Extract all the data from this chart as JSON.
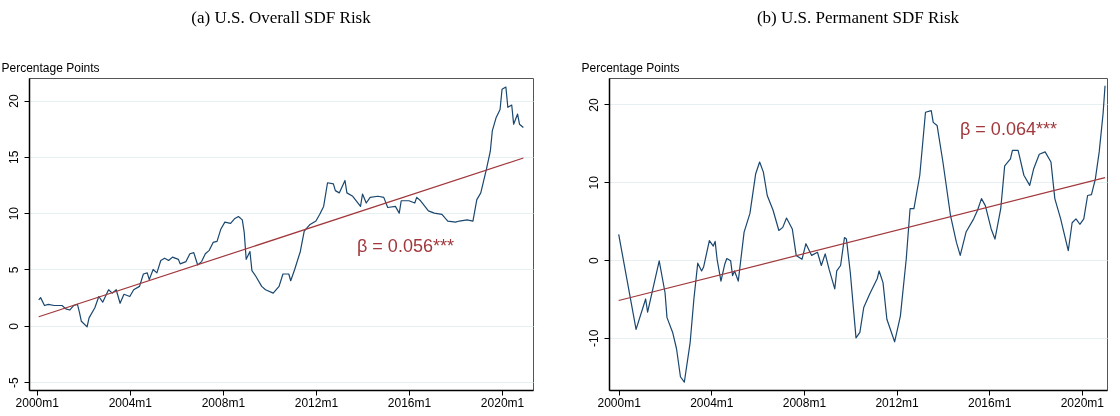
{
  "chart_data": [
    {
      "type": "line",
      "title": "(a) U.S. Overall SDF Risk",
      "ylabel": "Percentage Points",
      "xlim": [
        "1999-09",
        "2021-05"
      ],
      "ylim": [
        -5.7,
        22
      ],
      "xticks": [
        {
          "value": "2000-01",
          "label": "2000m1"
        },
        {
          "value": "2004-01",
          "label": "2004m1"
        },
        {
          "value": "2008-01",
          "label": "2008m1"
        },
        {
          "value": "2012-01",
          "label": "2012m1"
        },
        {
          "value": "2016-01",
          "label": "2016m1"
        },
        {
          "value": "2020-01",
          "label": "2020m1"
        }
      ],
      "yticks": [
        -5,
        0,
        5,
        10,
        15,
        20
      ],
      "grid": "y",
      "series": [
        {
          "color": "#1a476f",
          "x": [
            "2000-02",
            "2000-03",
            "2000-05",
            "2000-07",
            "2000-10",
            "2001-02",
            "2001-04",
            "2001-06",
            "2001-08",
            "2001-10",
            "2001-11",
            "2001-12",
            "2002-03",
            "2002-04",
            "2002-07",
            "2002-09",
            "2002-11",
            "2003-02",
            "2003-04",
            "2003-06",
            "2003-08",
            "2003-10",
            "2004-01",
            "2004-03",
            "2004-06",
            "2004-08",
            "2004-10",
            "2004-11",
            "2005-01",
            "2005-03",
            "2005-05",
            "2005-07",
            "2005-09",
            "2005-11",
            "2006-02",
            "2006-03",
            "2006-06",
            "2006-08",
            "2006-10",
            "2006-12",
            "2007-02",
            "2007-04",
            "2007-06",
            "2007-08",
            "2007-10",
            "2007-12",
            "2008-02",
            "2008-05",
            "2008-07",
            "2008-09",
            "2008-11",
            "2008-12",
            "2009-01",
            "2009-03",
            "2009-04",
            "2009-06",
            "2009-09",
            "2009-11",
            "2010-03",
            "2010-06",
            "2010-08",
            "2010-11",
            "2010-12",
            "2011-02",
            "2011-05",
            "2011-07",
            "2011-10",
            "2012-01",
            "2012-03",
            "2012-05",
            "2012-07",
            "2012-10",
            "2012-11",
            "2013-01",
            "2013-04",
            "2013-05",
            "2013-08",
            "2013-12",
            "2014-01",
            "2014-03",
            "2014-05",
            "2014-09",
            "2014-12",
            "2015-02",
            "2015-06",
            "2015-08",
            "2015-09",
            "2016-01",
            "2016-04",
            "2016-05",
            "2016-07",
            "2016-11",
            "2017-02",
            "2017-06",
            "2017-09",
            "2018-01",
            "2018-03",
            "2018-07",
            "2018-10",
            "2018-12",
            "2019-02",
            "2019-05",
            "2019-07",
            "2019-08",
            "2019-10",
            "2019-12",
            "2020-01",
            "2020-03",
            "2020-04",
            "2020-06",
            "2020-07",
            "2020-09",
            "2020-10",
            "2020-12"
          ],
          "values": [
            2.3,
            2.5,
            1.8,
            1.9,
            1.8,
            1.8,
            1.5,
            1.4,
            1.8,
            1.9,
            1.2,
            0.4,
            -0.1,
            0.7,
            1.6,
            2.6,
            2.1,
            3.2,
            2.9,
            3.2,
            2.0,
            2.8,
            2.6,
            3.2,
            3.5,
            4.6,
            4.7,
            4.1,
            5.0,
            4.7,
            5.8,
            6.0,
            5.8,
            6.1,
            5.9,
            5.5,
            5.7,
            6.4,
            6.5,
            5.4,
            5.7,
            6.4,
            6.7,
            7.4,
            7.5,
            8.6,
            9.2,
            9.1,
            9.5,
            9.7,
            9.4,
            8.3,
            5.9,
            6.6,
            4.9,
            4.4,
            3.5,
            3.2,
            2.9,
            3.5,
            4.6,
            4.6,
            4.0,
            5.0,
            6.6,
            8.4,
            9.0,
            9.3,
            9.9,
            10.6,
            12.7,
            12.6,
            12.0,
            11.8,
            12.9,
            11.8,
            11.5,
            10.6,
            11.7,
            10.9,
            11.4,
            11.5,
            11.4,
            10.5,
            10.6,
            10.0,
            11.1,
            11.1,
            10.9,
            11.4,
            11.1,
            10.2,
            10.0,
            9.9,
            9.3,
            9.2,
            9.3,
            9.4,
            9.3,
            11.2,
            11.8,
            13.9,
            15.5,
            17.3,
            18.5,
            19.2,
            21.0,
            21.2,
            19.4,
            19.6,
            17.9,
            18.8,
            17.9,
            17.6
          ]
        },
        {
          "type": "line",
          "color": "#a0383c",
          "x": [
            "2000-02",
            "2020-12"
          ],
          "values": [
            0.8,
            14.9
          ]
        }
      ],
      "annotations": [
        "β = 0.056***"
      ]
    },
    {
      "type": "line",
      "title": "(b) U.S. Permanent SDF Risk",
      "ylabel": "Percentage Points",
      "xlim": [
        "1999-08",
        "2021-02"
      ],
      "ylim": [
        -16.7,
        23.4
      ],
      "xticks": [
        {
          "value": "2000-01",
          "label": "2000m1"
        },
        {
          "value": "2004-01",
          "label": "2004m1"
        },
        {
          "value": "2008-01",
          "label": "2008m1"
        },
        {
          "value": "2012-01",
          "label": "2012m1"
        },
        {
          "value": "2016-01",
          "label": "2016m1"
        },
        {
          "value": "2020-01",
          "label": "2020m1"
        }
      ],
      "yticks": [
        -10,
        0,
        10,
        20
      ],
      "grid": "y",
      "series": [
        {
          "color": "#1a476f",
          "x": [
            "2000-01",
            "2000-10",
            "2001-03",
            "2001-04",
            "2001-10",
            "2002-01",
            "2002-02",
            "2002-05",
            "2002-07",
            "2002-09",
            "2002-11",
            "2003-02",
            "2003-04",
            "2003-06",
            "2003-08",
            "2003-09",
            "2003-12",
            "2004-02",
            "2004-03",
            "2004-04",
            "2004-06",
            "2004-08",
            "2004-09",
            "2004-11",
            "2004-12",
            "2005-01",
            "2005-03",
            "2005-06",
            "2005-09",
            "2005-12",
            "2006-02",
            "2006-04",
            "2006-06",
            "2006-09",
            "2006-12",
            "2007-02",
            "2007-04",
            "2007-07",
            "2007-09",
            "2007-12",
            "2008-02",
            "2008-05",
            "2008-08",
            "2008-10",
            "2008-12",
            "2009-02",
            "2009-05",
            "2009-06",
            "2009-08",
            "2009-10",
            "2009-11",
            "2010-01",
            "2010-04",
            "2010-06",
            "2010-08",
            "2010-11",
            "2011-03",
            "2011-04",
            "2011-06",
            "2011-08",
            "2011-12",
            "2012-03",
            "2012-06",
            "2012-08",
            "2012-10",
            "2013-01",
            "2013-04",
            "2013-07",
            "2013-08",
            "2013-10",
            "2014-01",
            "2014-05",
            "2014-08",
            "2014-10",
            "2015-01",
            "2015-05",
            "2015-07",
            "2015-09",
            "2015-11",
            "2016-02",
            "2016-04",
            "2016-07",
            "2016-09",
            "2016-12",
            "2017-01",
            "2017-04",
            "2017-07",
            "2017-10",
            "2017-12",
            "2018-03",
            "2018-06",
            "2018-09",
            "2018-11",
            "2019-02",
            "2019-06",
            "2019-08",
            "2019-10",
            "2019-12",
            "2020-02",
            "2020-04",
            "2020-06",
            "2020-08",
            "2020-10",
            "2020-12",
            "2021-01"
          ],
          "values": [
            3.3,
            -8.9,
            -5.0,
            -6.7,
            -0.1,
            -4.2,
            -7.4,
            -9.3,
            -11.4,
            -15.0,
            -15.7,
            -10.6,
            -5.0,
            -0.4,
            -1.4,
            -0.9,
            2.5,
            1.8,
            2.4,
            0.1,
            -2.7,
            -0.5,
            0.2,
            -0.1,
            -2.0,
            -1.4,
            -2.7,
            3.6,
            6.0,
            11.1,
            12.6,
            11.3,
            8.3,
            6.4,
            3.8,
            4.2,
            5.4,
            4.0,
            0.6,
            0.1,
            2.1,
            0.6,
            1.0,
            -0.7,
            0.8,
            -1.2,
            -3.7,
            -1.4,
            -0.7,
            2.9,
            2.7,
            -1.6,
            -10.0,
            -9.3,
            -6.1,
            -4.4,
            -2.4,
            -1.4,
            -2.9,
            -7.6,
            -10.5,
            -7.2,
            0.1,
            6.6,
            6.6,
            10.9,
            19.0,
            19.2,
            17.7,
            17.3,
            12.6,
            5.7,
            2.3,
            0.6,
            3.6,
            5.3,
            6.4,
            7.9,
            7.0,
            4.0,
            2.7,
            6.6,
            12.1,
            13.0,
            14.1,
            14.1,
            10.9,
            9.6,
            11.7,
            13.6,
            13.9,
            12.6,
            7.9,
            5.3,
            1.2,
            4.8,
            5.3,
            4.6,
            5.3,
            8.3,
            8.4,
            10.4,
            13.9,
            18.8,
            22.4
          ]
        },
        {
          "type": "line",
          "color": "#a0383c",
          "x": [
            "2000-01",
            "2021-01"
          ],
          "values": [
            -5.2,
            10.6
          ]
        }
      ],
      "annotations": [
        "β = 0.064***"
      ]
    }
  ]
}
